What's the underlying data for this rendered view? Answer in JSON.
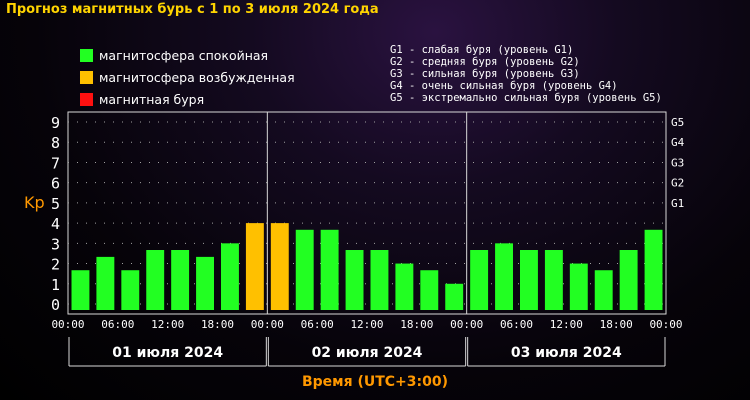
{
  "title": "Прогноз магнитных бурь с 1 по 3 июля 2024 года",
  "legend_status": [
    {
      "label": "магнитосфера спокойная",
      "color": "#22ff22"
    },
    {
      "label": "магнитосфера возбужденная",
      "color": "#ffc000"
    },
    {
      "label": "магнитная буря",
      "color": "#ff1010"
    }
  ],
  "legend_g": [
    "G1 - слабая буря (уровень G1)",
    "G2 - средняя буря (уровень G2)",
    "G3 - сильная буря (уровень G3)",
    "G4 - очень сильная буря (уровень G4)",
    "G5 - экстремально сильная буря (уровень G5)"
  ],
  "chart_data": {
    "type": "bar",
    "title": "Прогноз магнитных бурь с 1 по 3 июля 2024 года",
    "ylabel": "Kp",
    "xlabel": "Время (UTC+3:00)",
    "ylim": [
      0,
      9
    ],
    "y_ticks": [
      "0",
      "1",
      "2",
      "3",
      "4",
      "5",
      "6",
      "7",
      "8",
      "9"
    ],
    "g_levels": [
      {
        "label": "G1",
        "kp": 5
      },
      {
        "label": "G2",
        "kp": 6
      },
      {
        "label": "G3",
        "kp": 7
      },
      {
        "label": "G4",
        "kp": 8
      },
      {
        "label": "G5",
        "kp": 9
      }
    ],
    "x_tick_labels": [
      "00:00",
      "06:00",
      "12:00",
      "18:00",
      "00:00",
      "06:00",
      "12:00",
      "18:00",
      "00:00",
      "06:00",
      "12:00",
      "18:00",
      "00:00"
    ],
    "days": [
      "01 июля 2024",
      "02 июля 2024",
      "03 июля 2024"
    ],
    "grid": true,
    "values": [
      1.67,
      2.33,
      1.67,
      2.67,
      2.67,
      2.33,
      3.0,
      4.0,
      4.0,
      3.67,
      3.67,
      2.67,
      2.67,
      2.0,
      1.67,
      1.0,
      2.67,
      3.0,
      2.67,
      2.67,
      2.0,
      1.67,
      2.67,
      3.67
    ],
    "colors": {
      "quiet": "#22ff22",
      "excited": "#ffc000",
      "storm": "#ff1010"
    }
  }
}
